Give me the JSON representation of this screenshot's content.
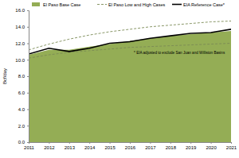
{
  "chart_data": {
    "type": "line",
    "y_label": "Bcf/day",
    "annotation": "* EIA adjusted to exclude San Juan and Williston Basins",
    "x": [
      2011,
      2012,
      2013,
      2014,
      2015,
      2016,
      2017,
      2018,
      2019,
      2020,
      2021
    ],
    "xlim": [
      2011,
      2021
    ],
    "xticks": [
      2011,
      2012,
      2013,
      2014,
      2015,
      2016,
      2017,
      2018,
      2019,
      2020,
      2021
    ],
    "ylim": [
      0,
      16
    ],
    "yticks": [
      {
        "value": 0,
        "label": "0.0"
      },
      {
        "value": 2,
        "label": "2.0"
      },
      {
        "value": 4,
        "label": "4.0"
      },
      {
        "value": 6,
        "label": "6.0"
      },
      {
        "value": 8,
        "label": "8.0"
      },
      {
        "value": 10,
        "label": "10.0"
      },
      {
        "value": 12,
        "label": "12.0"
      },
      {
        "value": 14,
        "label": "14.0"
      },
      {
        "value": 16,
        "label": "16.0"
      }
    ],
    "grid": false,
    "legend": "top",
    "series": [
      {
        "name": "El Paso Base Case",
        "type": "area",
        "color": "#94ad55",
        "values": [
          10.6,
          11.2,
          11.2,
          11.6,
          11.9,
          12.3,
          12.6,
          12.9,
          13.1,
          13.3,
          13.5
        ]
      },
      {
        "name": "El Paso Low and High Cases",
        "type": "line",
        "line_style": "dashed",
        "color": "#7a8a55",
        "values": [
          11.2,
          11.9,
          12.5,
          13.0,
          13.4,
          13.7,
          14.0,
          14.2,
          14.4,
          14.6,
          14.7
        ]
      },
      {
        "name": "El Paso Low and High Cases",
        "type": "line",
        "line_style": "dashed",
        "color": "#7a8a55",
        "values": [
          10.2,
          10.6,
          10.9,
          11.1,
          11.3,
          11.5,
          11.6,
          11.7,
          11.8,
          11.9,
          12.0
        ]
      },
      {
        "name": "EIA Reference Case*",
        "type": "line",
        "line_style": "solid",
        "color": "#000000",
        "values": [
          10.7,
          11.4,
          11.0,
          11.4,
          12.0,
          12.2,
          12.6,
          12.9,
          13.2,
          13.3,
          13.7
        ]
      }
    ]
  }
}
